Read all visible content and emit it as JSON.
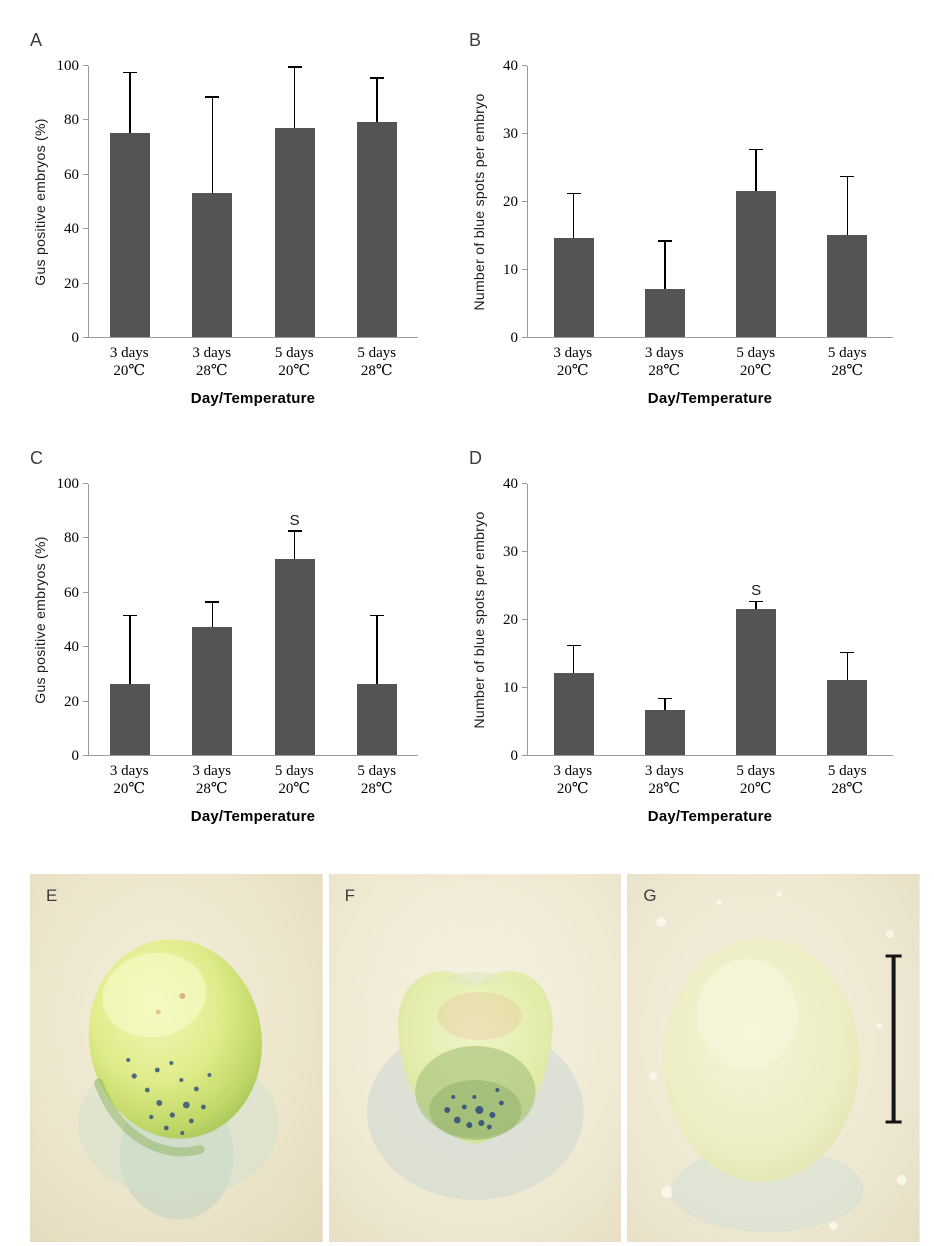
{
  "figure": {
    "background": "#ffffff",
    "panel_letters": [
      "A",
      "B",
      "C",
      "D",
      "E",
      "F",
      "G"
    ]
  },
  "style": {
    "bar_color": "#545454",
    "axis_color": "#9b9b9b",
    "error_bar_color": "#000000",
    "text_color": "#000000"
  },
  "chart_data": [
    {
      "type": "bar",
      "panel": "A",
      "title": "",
      "ylabel": "Gus positive embryos (%)",
      "xlabel": "Day/Temperature",
      "ylim": [
        0,
        100
      ],
      "yticks": [
        0,
        20,
        40,
        60,
        80,
        100
      ],
      "categories": [
        [
          "3 days",
          "20℃"
        ],
        [
          "3 days",
          "28℃"
        ],
        [
          "5 days",
          "20℃"
        ],
        [
          "5 days",
          "28℃"
        ]
      ],
      "values": [
        75,
        53,
        77,
        79
      ],
      "errors": [
        22,
        35,
        22,
        16
      ],
      "annotations": [
        "",
        "",
        "",
        ""
      ],
      "grid": false,
      "legend": "none"
    },
    {
      "type": "bar",
      "panel": "B",
      "title": "",
      "ylabel": "Number of blue spots per embryo",
      "xlabel": "Day/Temperature",
      "ylim": [
        0,
        40
      ],
      "yticks": [
        0,
        10,
        20,
        30,
        40
      ],
      "categories": [
        [
          "3 days",
          "20℃"
        ],
        [
          "3 days",
          "28℃"
        ],
        [
          "5 days",
          "20℃"
        ],
        [
          "5 days",
          "28℃"
        ]
      ],
      "values": [
        14.5,
        7,
        21.5,
        15
      ],
      "errors": [
        6.5,
        7,
        6,
        8.5
      ],
      "annotations": [
        "",
        "",
        "",
        ""
      ],
      "grid": false,
      "legend": "none"
    },
    {
      "type": "bar",
      "panel": "C",
      "title": "",
      "ylabel": "Gus positive embryos (%)",
      "xlabel": "Day/Temperature",
      "ylim": [
        0,
        100
      ],
      "yticks": [
        0,
        20,
        40,
        60,
        80,
        100
      ],
      "categories": [
        [
          "3 days",
          "20℃"
        ],
        [
          "3 days",
          "28℃"
        ],
        [
          "5 days",
          "20℃"
        ],
        [
          "5 days",
          "28℃"
        ]
      ],
      "values": [
        26,
        47,
        72,
        26
      ],
      "errors": [
        25,
        9,
        10,
        25
      ],
      "annotations": [
        "",
        "",
        "S",
        ""
      ],
      "grid": false,
      "legend": "none"
    },
    {
      "type": "bar",
      "panel": "D",
      "title": "",
      "ylabel": "Number of blue spots per embryo",
      "xlabel": "Day/Temperature",
      "ylim": [
        0,
        40
      ],
      "yticks": [
        0,
        10,
        20,
        30,
        40
      ],
      "categories": [
        [
          "3 days",
          "20℃"
        ],
        [
          "3 days",
          "28℃"
        ],
        [
          "5 days",
          "20℃"
        ],
        [
          "5 days",
          "28℃"
        ]
      ],
      "values": [
        12,
        6.6,
        21.5,
        11
      ],
      "errors": [
        4,
        1.6,
        1,
        4
      ],
      "annotations": [
        "",
        "",
        "S",
        ""
      ],
      "grid": false,
      "legend": "none"
    }
  ],
  "photos": [
    {
      "label": "E"
    },
    {
      "label": "F"
    },
    {
      "label": "G",
      "has_scale_bar": true
    }
  ]
}
